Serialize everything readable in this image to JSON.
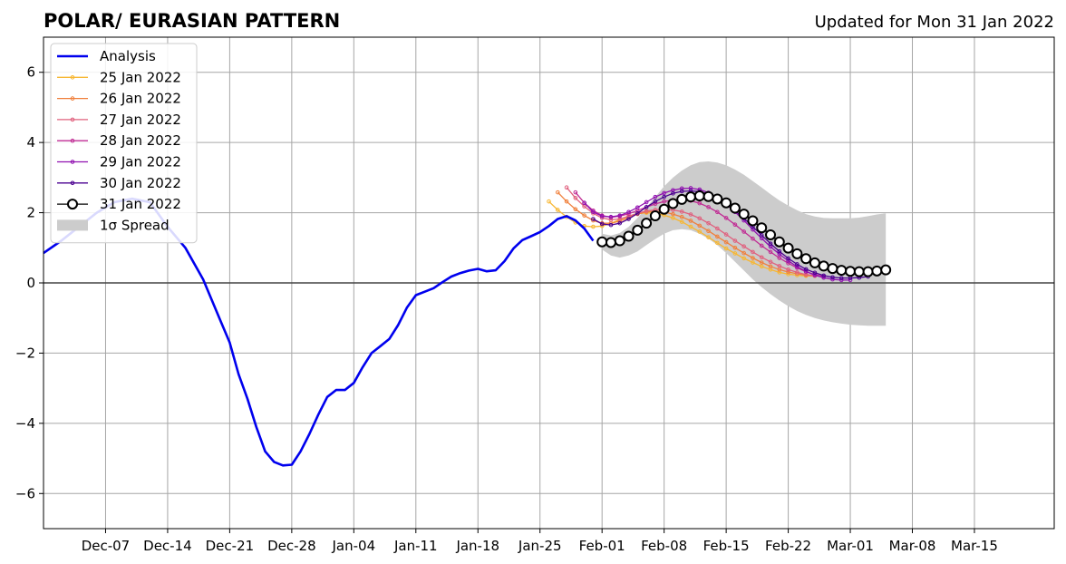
{
  "chart_data": {
    "type": "line",
    "title": "POLAR/ EURASIAN  PATTERN",
    "subtitle": "Updated for Mon 31 Jan 2022",
    "xlabel": "",
    "ylabel": "",
    "ylim": [
      -7,
      7
    ],
    "xlim": [
      "2021-11-30",
      "2022-03-24"
    ],
    "yticks": [
      -6,
      -4,
      -2,
      0,
      2,
      4,
      6
    ],
    "ytick_labels": [
      "−6",
      "−4",
      "−2",
      "0",
      "2",
      "4",
      "6"
    ],
    "xticks": [
      {
        "date": "2021-12-07",
        "label": "Dec-07"
      },
      {
        "date": "2021-12-14",
        "label": "Dec-14"
      },
      {
        "date": "2021-12-21",
        "label": "Dec-21"
      },
      {
        "date": "2021-12-28",
        "label": "Dec-28"
      },
      {
        "date": "2022-01-04",
        "label": "Jan-04"
      },
      {
        "date": "2022-01-11",
        "label": "Jan-11"
      },
      {
        "date": "2022-01-18",
        "label": "Jan-18"
      },
      {
        "date": "2022-01-25",
        "label": "Jan-25"
      },
      {
        "date": "2022-02-01",
        "label": "Feb-01"
      },
      {
        "date": "2022-02-08",
        "label": "Feb-08"
      },
      {
        "date": "2022-02-15",
        "label": "Feb-15"
      },
      {
        "date": "2022-02-22",
        "label": "Feb-22"
      },
      {
        "date": "2022-03-01",
        "label": "Mar-01"
      },
      {
        "date": "2022-03-08",
        "label": "Mar-08"
      },
      {
        "date": "2022-03-15",
        "label": "Mar-15"
      }
    ],
    "grid": true,
    "legend_position": "top-left",
    "zero_line": true,
    "analysis": {
      "name": "Analysis",
      "color": "#0000ee",
      "points": [
        [
          "2021-11-30",
          0.85
        ],
        [
          "2021-12-02",
          1.2
        ],
        [
          "2021-12-04",
          1.6
        ],
        [
          "2021-12-06",
          2.0
        ],
        [
          "2021-12-08",
          2.3
        ],
        [
          "2021-12-10",
          2.4
        ],
        [
          "2021-12-12",
          2.3
        ],
        [
          "2021-12-14",
          1.6
        ],
        [
          "2021-12-16",
          1.0
        ],
        [
          "2021-12-18",
          0.1
        ],
        [
          "2021-12-20",
          -1.1
        ],
        [
          "2021-12-21",
          -1.7
        ],
        [
          "2021-12-22",
          -2.6
        ],
        [
          "2021-12-23",
          -3.3
        ],
        [
          "2021-12-24",
          -4.1
        ],
        [
          "2021-12-25",
          -4.8
        ],
        [
          "2021-12-26",
          -5.1
        ],
        [
          "2021-12-27",
          -5.2
        ],
        [
          "2021-12-28",
          -5.18
        ],
        [
          "2021-12-29",
          -4.8
        ],
        [
          "2021-12-30",
          -4.3
        ],
        [
          "2021-12-31",
          -3.75
        ],
        [
          "2022-01-01",
          -3.25
        ],
        [
          "2022-01-02",
          -3.05
        ],
        [
          "2022-01-03",
          -3.05
        ],
        [
          "2022-01-04",
          -2.85
        ],
        [
          "2022-01-05",
          -2.4
        ],
        [
          "2022-01-06",
          -2.0
        ],
        [
          "2022-01-07",
          -1.8
        ],
        [
          "2022-01-08",
          -1.6
        ],
        [
          "2022-01-09",
          -1.2
        ],
        [
          "2022-01-10",
          -0.7
        ],
        [
          "2022-01-11",
          -0.35
        ],
        [
          "2022-01-12",
          -0.25
        ],
        [
          "2022-01-13",
          -0.15
        ],
        [
          "2022-01-14",
          0.02
        ],
        [
          "2022-01-15",
          0.18
        ],
        [
          "2022-01-16",
          0.28
        ],
        [
          "2022-01-17",
          0.35
        ],
        [
          "2022-01-18",
          0.4
        ],
        [
          "2022-01-19",
          0.33
        ],
        [
          "2022-01-20",
          0.36
        ],
        [
          "2022-01-21",
          0.62
        ],
        [
          "2022-01-22",
          0.98
        ],
        [
          "2022-01-23",
          1.22
        ],
        [
          "2022-01-24",
          1.33
        ],
        [
          "2022-01-25",
          1.45
        ],
        [
          "2022-01-26",
          1.62
        ],
        [
          "2022-01-27",
          1.82
        ],
        [
          "2022-01-28",
          1.9
        ],
        [
          "2022-01-29",
          1.78
        ],
        [
          "2022-01-30",
          1.55
        ],
        [
          "2022-01-31",
          1.2
        ]
      ]
    },
    "series": [
      {
        "name": "25 Jan 2022",
        "color": "#f7b733",
        "start": "2022-01-26",
        "values": [
          2.32,
          2.08,
          1.88,
          1.72,
          1.62,
          1.6,
          1.62,
          1.7,
          1.8,
          1.9,
          1.97,
          2.0,
          1.98,
          1.93,
          1.85,
          1.74,
          1.6,
          1.46,
          1.3,
          1.14,
          0.98,
          0.84,
          0.7,
          0.58,
          0.47,
          0.38,
          0.3,
          0.25,
          0.22,
          0.2,
          0.2
        ]
      },
      {
        "name": "26 Jan 2022",
        "color": "#f0803c",
        "start": "2022-01-27",
        "values": [
          2.58,
          2.32,
          2.1,
          1.92,
          1.78,
          1.7,
          1.7,
          1.76,
          1.86,
          1.96,
          2.02,
          2.04,
          2.02,
          1.96,
          1.88,
          1.77,
          1.63,
          1.48,
          1.32,
          1.16,
          1.0,
          0.85,
          0.71,
          0.58,
          0.47,
          0.38,
          0.31,
          0.26,
          0.22,
          0.2
        ]
      },
      {
        "name": "27 Jan 2022",
        "color": "#e0607e",
        "start": "2022-01-28",
        "values": [
          2.72,
          2.42,
          2.18,
          1.98,
          1.85,
          1.8,
          1.82,
          1.9,
          1.98,
          2.05,
          2.08,
          2.1,
          2.08,
          2.03,
          1.95,
          1.84,
          1.7,
          1.55,
          1.38,
          1.2,
          1.04,
          0.88,
          0.73,
          0.6,
          0.48,
          0.38,
          0.3,
          0.24,
          0.2
        ]
      },
      {
        "name": "28 Jan 2022",
        "color": "#c02c94",
        "start": "2022-01-29",
        "values": [
          2.58,
          2.28,
          2.06,
          1.92,
          1.87,
          1.9,
          1.97,
          2.06,
          2.16,
          2.25,
          2.32,
          2.36,
          2.37,
          2.34,
          2.27,
          2.16,
          2.02,
          1.85,
          1.66,
          1.46,
          1.26,
          1.06,
          0.88,
          0.71,
          0.56,
          0.43,
          0.32,
          0.24,
          0.18
        ]
      },
      {
        "name": "29 Jan 2022",
        "color": "#9010b0",
        "start": "2022-01-30",
        "values": [
          2.28,
          2.02,
          1.9,
          1.88,
          1.92,
          2.02,
          2.15,
          2.3,
          2.45,
          2.56,
          2.64,
          2.69,
          2.7,
          2.66,
          2.57,
          2.43,
          2.24,
          2.02,
          1.78,
          1.52,
          1.27,
          1.03,
          0.82,
          0.63,
          0.46,
          0.33,
          0.22,
          0.15,
          0.1,
          0.08,
          0.08
        ]
      },
      {
        "name": "30 Jan 2022",
        "color": "#4b0090",
        "start": "2022-01-31",
        "values": [
          1.82,
          1.68,
          1.65,
          1.7,
          1.82,
          1.98,
          2.16,
          2.32,
          2.45,
          2.55,
          2.61,
          2.62,
          2.6,
          2.53,
          2.42,
          2.26,
          2.06,
          1.84,
          1.6,
          1.36,
          1.12,
          0.9,
          0.7,
          0.53,
          0.39,
          0.29,
          0.21,
          0.16,
          0.14,
          0.14,
          0.15,
          0.18
        ]
      },
      {
        "name": "31 Jan 2022",
        "color": "#000000",
        "marker": "circle",
        "start": "2022-02-01",
        "values": [
          1.17,
          1.15,
          1.2,
          1.33,
          1.5,
          1.7,
          1.91,
          2.1,
          2.26,
          2.38,
          2.45,
          2.48,
          2.46,
          2.39,
          2.28,
          2.13,
          1.96,
          1.77,
          1.57,
          1.37,
          1.17,
          0.99,
          0.83,
          0.69,
          0.57,
          0.48,
          0.41,
          0.36,
          0.33,
          0.32,
          0.32,
          0.34,
          0.37
        ]
      }
    ],
    "spread": {
      "name": "1σ Spread",
      "color": "#cccccc",
      "start": "2022-02-01",
      "upper": [
        1.4,
        1.35,
        1.42,
        1.6,
        1.85,
        2.15,
        2.45,
        2.75,
        3.0,
        3.2,
        3.35,
        3.44,
        3.46,
        3.43,
        3.35,
        3.23,
        3.08,
        2.9,
        2.72,
        2.53,
        2.35,
        2.2,
        2.07,
        1.96,
        1.89,
        1.85,
        1.84,
        1.84,
        1.84,
        1.86,
        1.9,
        1.95,
        1.98
      ],
      "lower": [
        0.95,
        0.78,
        0.72,
        0.78,
        0.9,
        1.08,
        1.25,
        1.4,
        1.5,
        1.53,
        1.5,
        1.4,
        1.26,
        1.08,
        0.85,
        0.6,
        0.35,
        0.1,
        -0.12,
        -0.32,
        -0.5,
        -0.66,
        -0.8,
        -0.91,
        -1.0,
        -1.07,
        -1.12,
        -1.16,
        -1.19,
        -1.21,
        -1.22,
        -1.22,
        -1.22
      ]
    }
  }
}
